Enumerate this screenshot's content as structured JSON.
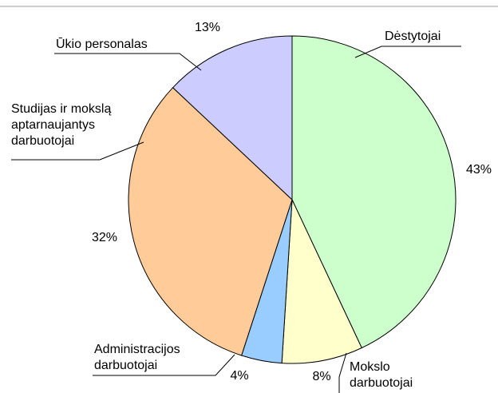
{
  "chart_data": {
    "type": "pie",
    "categories": [
      "Dėstytojai",
      "Mokslo darbuotojai",
      "Administracijos darbuotojai",
      "Studijas ir mokslą aptarnaujantys darbuotojai",
      "Ūkio personalas"
    ],
    "values": [
      43,
      8,
      4,
      32,
      13
    ],
    "value_labels": [
      "43%",
      "8%",
      "4%",
      "32%",
      "13%"
    ],
    "colors": [
      "#ccffcc",
      "#ffffcc",
      "#99ccff",
      "#ffcc99",
      "#ccccff"
    ]
  }
}
